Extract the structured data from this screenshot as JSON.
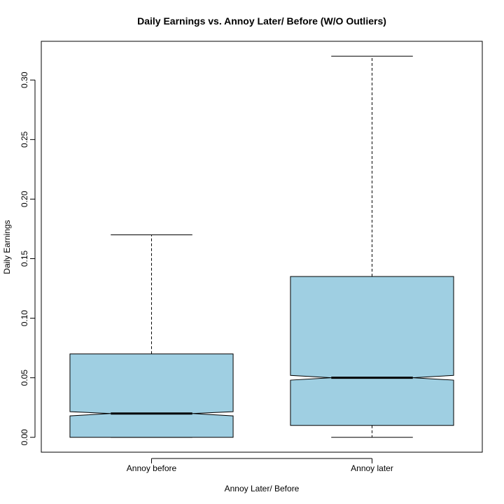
{
  "chart_data": {
    "type": "boxplot",
    "title": "Daily Earnings vs. Annoy Later/ Before (W/O Outliers)",
    "xlabel": "Annoy Later/ Before",
    "ylabel": "Daily Earnings",
    "categories": [
      "Annoy before",
      "Annoy later"
    ],
    "boxes": [
      {
        "name": "Annoy before",
        "whisker_low": 0.0,
        "q1": 0.0,
        "median": 0.02,
        "q3": 0.07,
        "whisker_high": 0.17,
        "notch_low": 0.018,
        "notch_high": 0.0215
      },
      {
        "name": "Annoy later",
        "whisker_low": 0.0,
        "q1": 0.01,
        "median": 0.05,
        "q3": 0.135,
        "whisker_high": 0.32,
        "notch_low": 0.048,
        "notch_high": 0.052
      }
    ],
    "y_ticks": [
      0.0,
      0.05,
      0.1,
      0.15,
      0.2,
      0.25,
      0.3
    ],
    "y_tick_labels": [
      "0.00",
      "0.05",
      "0.10",
      "0.15",
      "0.20",
      "0.25",
      "0.30"
    ],
    "ylim": [
      -0.0125,
      0.3325
    ],
    "box_fill": "#9fcfe2",
    "grid": false,
    "legend": "none"
  }
}
